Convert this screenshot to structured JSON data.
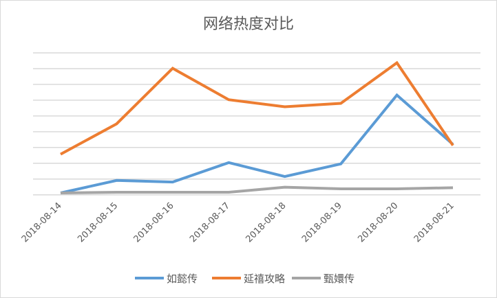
{
  "chart_data": {
    "type": "line",
    "title": "网络热度对比",
    "xlabel": "",
    "ylabel": "",
    "categories": [
      "2018-08-14",
      "2018-08-15",
      "2018-08-16",
      "2018-08-17",
      "2018-08-18",
      "2018-08-19",
      "2018-08-20",
      "2018-08-21"
    ],
    "ylim": [
      0,
      9
    ],
    "grid": true,
    "y_tick_labels_shown": false,
    "legend_position": "bottom",
    "series": [
      {
        "name": "如懿传",
        "color": "#5b9bd5",
        "values": [
          0.12,
          0.91,
          0.81,
          2.04,
          1.16,
          1.96,
          6.32,
          3.2
        ]
      },
      {
        "name": "延禧攻略",
        "color": "#ed7d31",
        "values": [
          2.57,
          4.5,
          8.02,
          6.03,
          5.58,
          5.8,
          8.37,
          3.13
        ]
      },
      {
        "name": "甄嬛传",
        "color": "#a5a5a5",
        "values": [
          0.12,
          0.16,
          0.16,
          0.16,
          0.48,
          0.38,
          0.38,
          0.45
        ]
      }
    ]
  }
}
